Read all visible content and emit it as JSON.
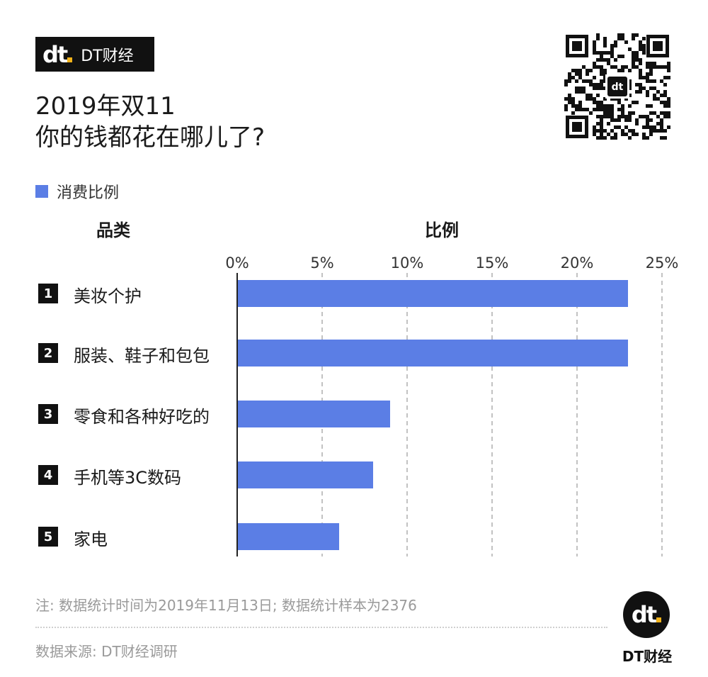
{
  "brand": {
    "logo_mark": "dt",
    "name": "DT财经"
  },
  "title": {
    "line1": "2019年双11",
    "line2": "你的钱都花在哪儿了?"
  },
  "legend": {
    "label": "消费比例",
    "color": "#5b7ee5"
  },
  "columns": {
    "category": "品类",
    "value": "比例"
  },
  "chart_data": {
    "type": "bar",
    "orientation": "horizontal",
    "title": "2019年双11 你的钱都花在哪儿了?",
    "xlabel": "比例",
    "ylabel": "品类",
    "xlim": [
      0,
      25
    ],
    "xticks": [
      "0%",
      "5%",
      "10%",
      "15%",
      "20%",
      "25%"
    ],
    "grid": "vertical dashed",
    "legend_position": "top-left",
    "categories": [
      "美妆个护",
      "服装、鞋子和包包",
      "零食和各种好吃的",
      "手机等3C数码",
      "家电"
    ],
    "ranks": [
      "1",
      "2",
      "3",
      "4",
      "5"
    ],
    "series": [
      {
        "name": "消费比例",
        "color": "#5b7ee5",
        "values": [
          23,
          23,
          9,
          8,
          6
        ]
      }
    ]
  },
  "footer": {
    "note": "注: 数据统计时间为2019年11月13日; 数据统计样本为2376",
    "source": "数据来源: DT财经调研"
  },
  "corner_logo": {
    "mark": "dt",
    "name": "DT财经"
  }
}
